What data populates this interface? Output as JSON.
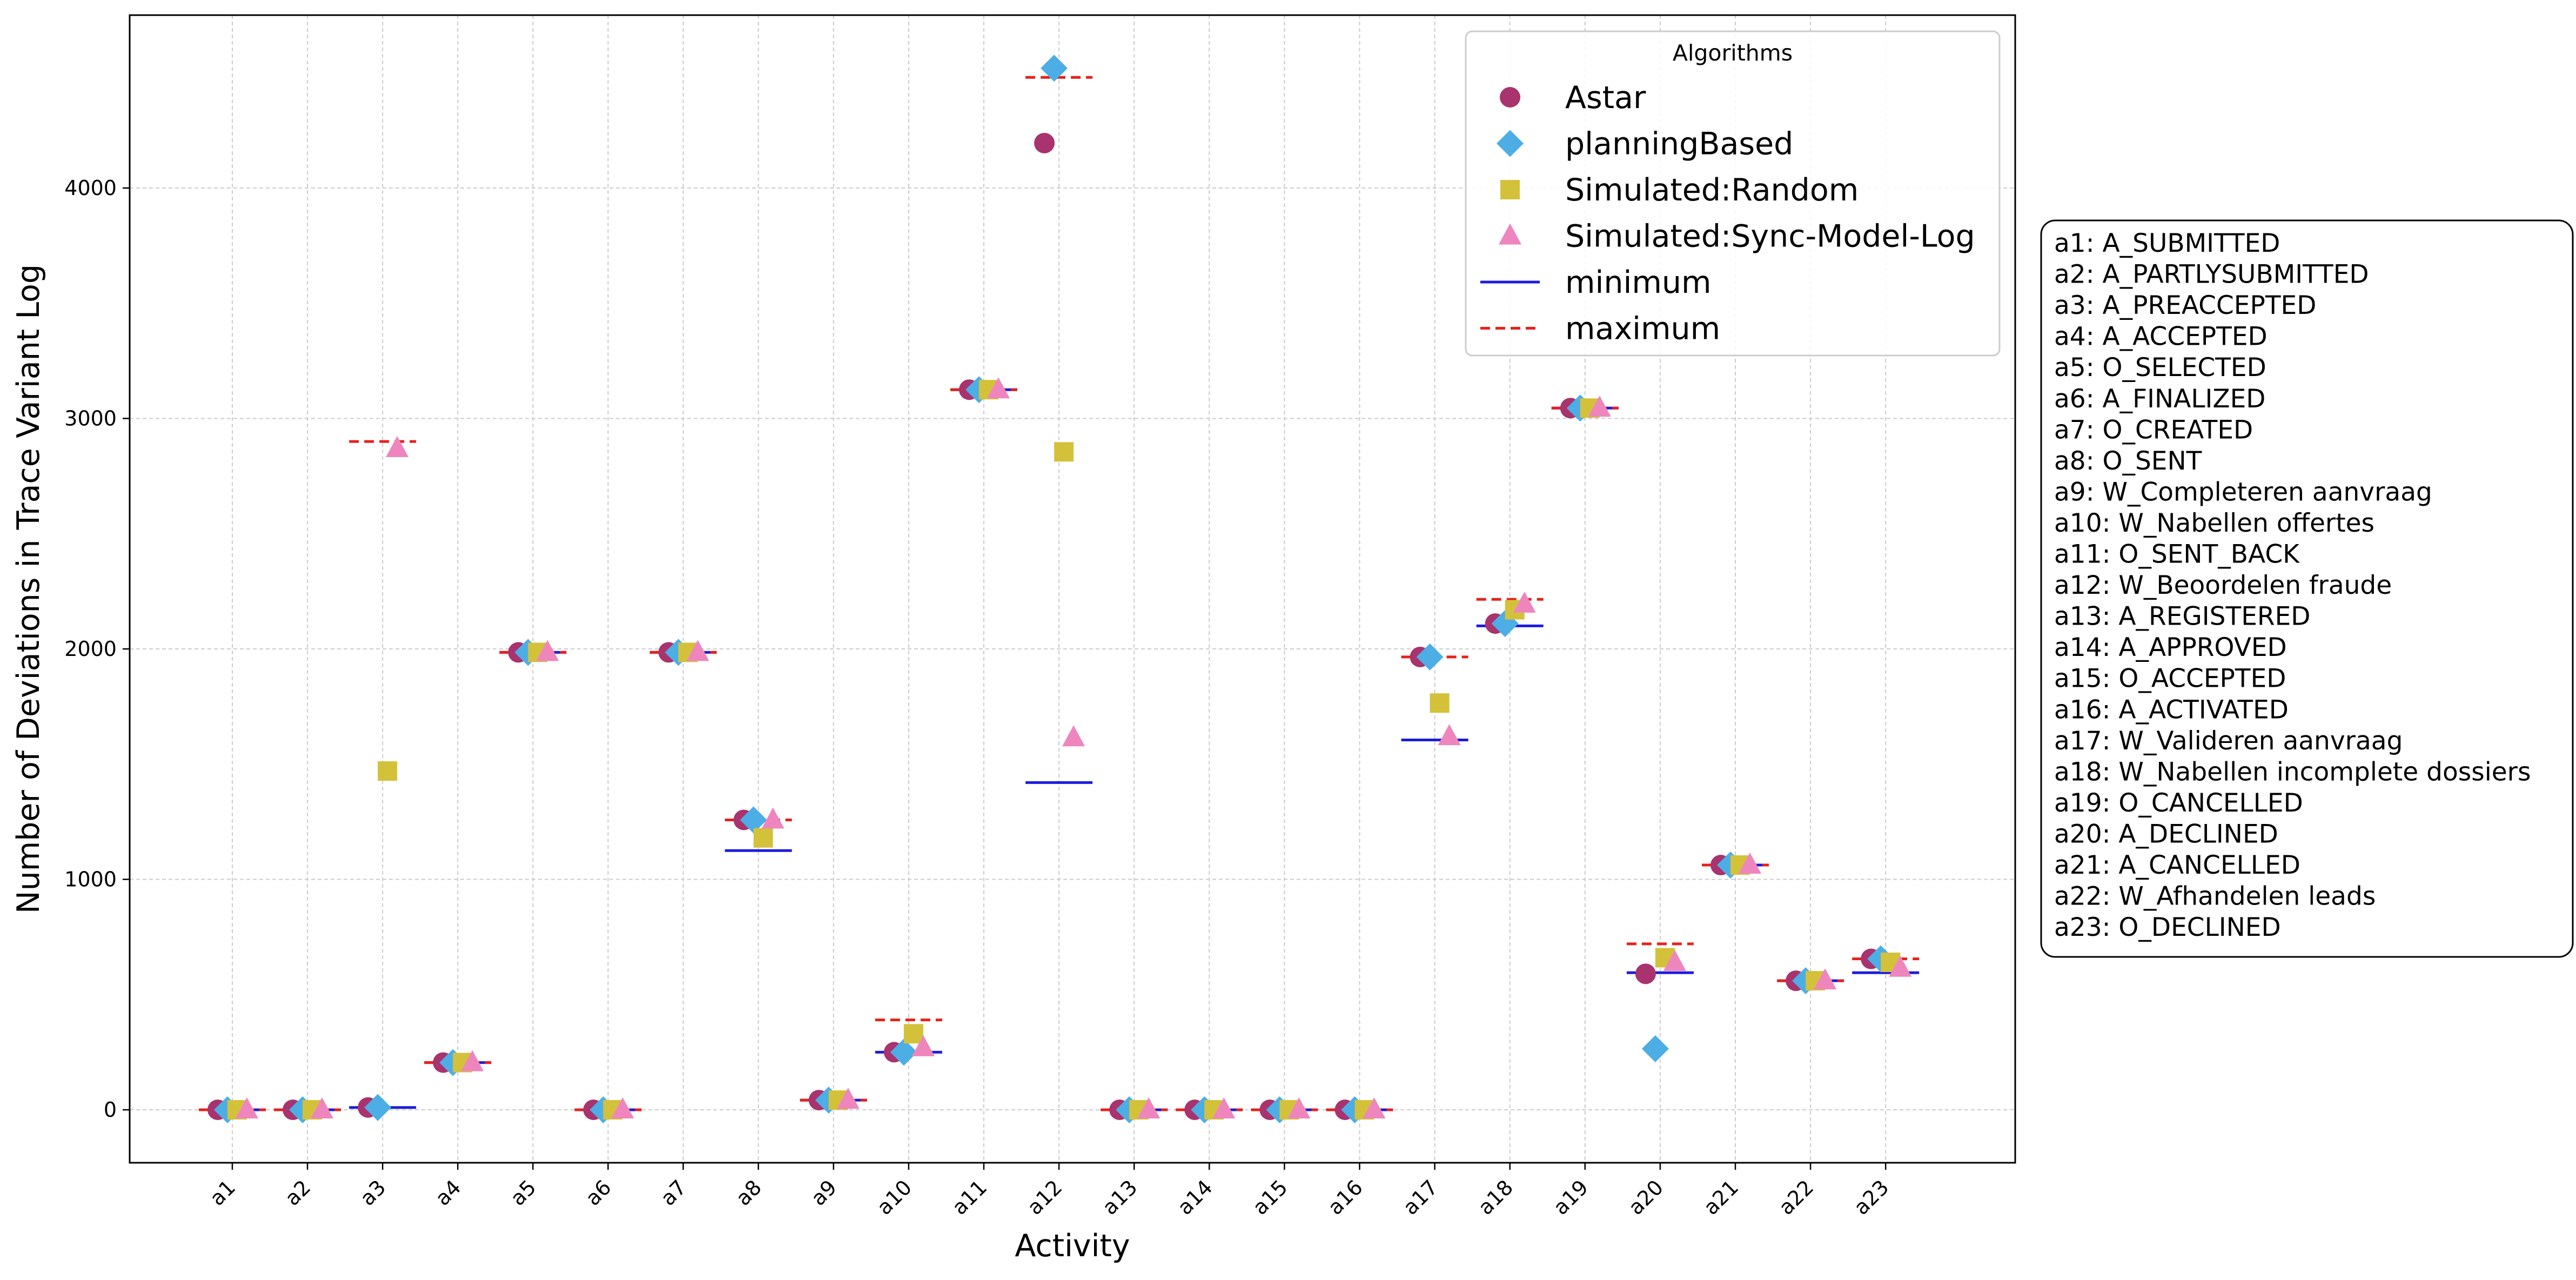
{
  "chart_data": {
    "type": "scatter",
    "title": "",
    "xlabel": "Activity",
    "ylabel": "Number of Deviations in Trace Variant Log",
    "categories": [
      "a1",
      "a2",
      "a3",
      "a4",
      "a5",
      "a6",
      "a7",
      "a8",
      "a9",
      "a10",
      "a11",
      "a12",
      "a13",
      "a14",
      "a15",
      "a16",
      "a17",
      "a18",
      "a19",
      "a20",
      "a21",
      "a22",
      "a23"
    ],
    "ylim": [
      -230,
      4700
    ],
    "yticks": [
      0,
      1000,
      2000,
      3000,
      4000
    ],
    "grid": true,
    "legend": {
      "title": "Algorithms",
      "placement": "top-right",
      "entries": [
        {
          "label": "Astar",
          "marker": "circle",
          "color": "#a8336e"
        },
        {
          "label": "planningBased",
          "marker": "diamond",
          "color": "#4daee6"
        },
        {
          "label": "Simulated:Random",
          "marker": "square",
          "color": "#d4c13a"
        },
        {
          "label": "Simulated:Sync-Model-Log",
          "marker": "triangle",
          "color": "#ee86bd"
        },
        {
          "label": "minimum",
          "marker": "solid-line",
          "color": "#1c1ce0"
        },
        {
          "label": "maximum",
          "marker": "dashed-line",
          "color": "#e8201a"
        }
      ]
    },
    "series": [
      {
        "name": "Astar",
        "marker": "circle",
        "color": "#a8336e",
        "values": [
          0,
          0,
          10,
          205,
          1985,
          0,
          1985,
          1258,
          42,
          250,
          3125,
          4195,
          0,
          0,
          0,
          0,
          1965,
          2110,
          3045,
          590,
          1062,
          560,
          655
        ]
      },
      {
        "name": "planningBased",
        "marker": "diamond",
        "color": "#4daee6",
        "values": [
          0,
          0,
          10,
          205,
          1985,
          0,
          1985,
          1258,
          42,
          250,
          3125,
          4520,
          0,
          0,
          0,
          0,
          1965,
          2110,
          3045,
          265,
          1062,
          560,
          655
        ]
      },
      {
        "name": "Simulated:Random",
        "marker": "square",
        "color": "#d4c13a",
        "values": [
          0,
          0,
          1470,
          205,
          1985,
          0,
          1985,
          1180,
          42,
          330,
          3125,
          2855,
          0,
          0,
          0,
          0,
          1765,
          2170,
          3045,
          660,
          1062,
          560,
          640
        ]
      },
      {
        "name": "Simulated:Sync-Model-Log",
        "marker": "triangle",
        "color": "#ee86bd",
        "values": [
          0,
          0,
          2870,
          205,
          1985,
          0,
          1985,
          1258,
          42,
          270,
          3125,
          1615,
          0,
          0,
          0,
          0,
          1620,
          2195,
          3045,
          640,
          1062,
          560,
          615
        ]
      }
    ],
    "minimum": [
      0,
      0,
      10,
      205,
      1985,
      0,
      1985,
      1125,
      42,
      250,
      3125,
      1420,
      0,
      0,
      0,
      0,
      1605,
      2100,
      3045,
      595,
      1062,
      560,
      595
    ],
    "maximum": [
      0,
      0,
      2900,
      205,
      1985,
      0,
      1985,
      1258,
      42,
      390,
      3125,
      4480,
      0,
      0,
      0,
      0,
      1965,
      2215,
      3045,
      720,
      1062,
      560,
      655
    ]
  },
  "activity_key": [
    "a1: A_SUBMITTED",
    "a2: A_PARTLYSUBMITTED",
    "a3: A_PREACCEPTED",
    "a4: A_ACCEPTED",
    "a5: O_SELECTED",
    "a6: A_FINALIZED",
    "a7: O_CREATED",
    "a8: O_SENT",
    "a9: W_Completeren aanvraag",
    "a10: W_Nabellen offertes",
    "a11: O_SENT_BACK",
    "a12: W_Beoordelen fraude",
    "a13: A_REGISTERED",
    "a14: A_APPROVED",
    "a15: O_ACCEPTED",
    "a16: A_ACTIVATED",
    "a17: W_Valideren aanvraag",
    "a18: W_Nabellen incomplete dossiers",
    "a19: O_CANCELLED",
    "a20: A_DECLINED",
    "a21: A_CANCELLED",
    "a22: W_Afhandelen leads",
    "a23: O_DECLINED"
  ]
}
